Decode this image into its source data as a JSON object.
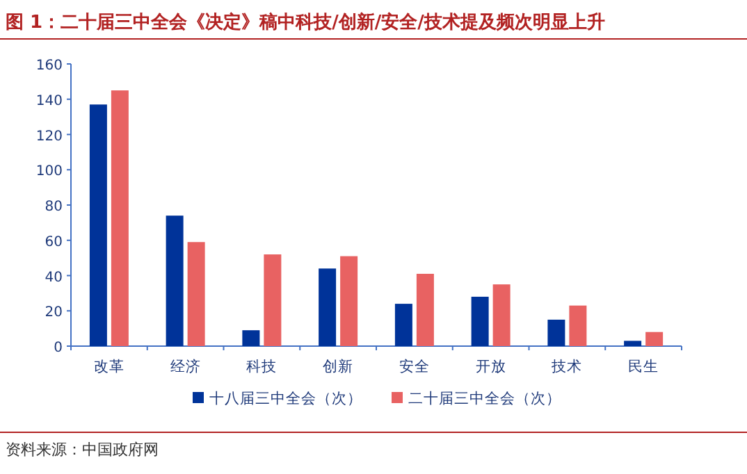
{
  "chart_data": {
    "type": "bar",
    "title": "图 1：二十届三中全会《决定》稿中科技/创新/安全/技术提及频次明显上升",
    "categories": [
      "改革",
      "经济",
      "科技",
      "创新",
      "安全",
      "开放",
      "技术",
      "民生"
    ],
    "series": [
      {
        "name": "十八届三中全会（次）",
        "color": "#003399",
        "values": [
          137,
          74,
          9,
          44,
          24,
          28,
          15,
          3
        ]
      },
      {
        "name": "二十届三中全会（次）",
        "color": "#e86262",
        "values": [
          145,
          59,
          52,
          51,
          41,
          35,
          23,
          8
        ]
      }
    ],
    "ylim": [
      0,
      160
    ],
    "yticks": [
      0,
      20,
      40,
      60,
      80,
      100,
      120,
      140,
      160
    ],
    "grid": false,
    "legend": "bottom",
    "annotations": [
      "资料来源：中国政府网"
    ]
  }
}
